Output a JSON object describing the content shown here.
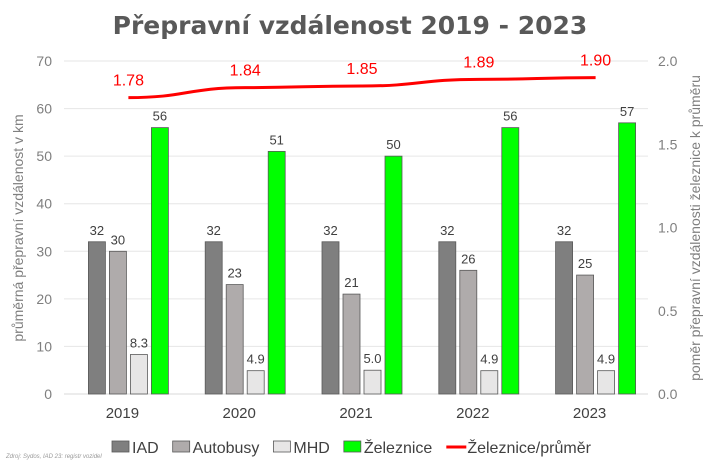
{
  "chart_data": {
    "type": "bar",
    "title": "Přepravní vzdálenost 2019 - 2023",
    "categories": [
      "2019",
      "2020",
      "2021",
      "2022",
      "2023"
    ],
    "ylabel": "průměrná přepravní vzdálenost v km",
    "y2label": "poměr přepravní vzdálenosti železnice k průměru",
    "ylim": [
      0,
      70
    ],
    "y2lim": [
      0,
      2.0
    ],
    "yticks": [
      "0",
      "10",
      "20",
      "30",
      "40",
      "50",
      "60",
      "70"
    ],
    "y2ticks": [
      "0.0",
      "0.5",
      "1.0",
      "1.5",
      "2.0"
    ],
    "grid": true,
    "legend_position": "bottom",
    "series": [
      {
        "name": "IAD",
        "type": "bar",
        "color": "#7f7f7f",
        "values": [
          32,
          32,
          32,
          32,
          32
        ],
        "labels": [
          "32",
          "32",
          "32",
          "32",
          "32"
        ]
      },
      {
        "name": "Autobusy",
        "type": "bar",
        "color": "#afabab",
        "values": [
          30,
          23,
          21,
          26,
          25
        ],
        "labels": [
          "30",
          "23",
          "21",
          "26",
          "25"
        ]
      },
      {
        "name": "MHD",
        "type": "bar",
        "color": "#e7e6e6",
        "values": [
          8.3,
          4.9,
          5.0,
          4.9,
          4.9
        ],
        "labels": [
          "8.3",
          "4.9",
          "5.0",
          "4.9",
          "4.9"
        ]
      },
      {
        "name": "Železnice",
        "type": "bar",
        "color": "#00ff00",
        "values": [
          56,
          51,
          50,
          56,
          57
        ],
        "labels": [
          "56",
          "51",
          "50",
          "56",
          "57"
        ]
      },
      {
        "name": "Železnice/průměr",
        "type": "line",
        "axis": "secondary",
        "color": "#ff0000",
        "values": [
          1.78,
          1.84,
          1.85,
          1.89,
          1.9
        ],
        "labels": [
          "1.78",
          "1.84",
          "1.85",
          "1.89",
          "1.90"
        ]
      }
    ],
    "source": "Zdroj: Sydos, IAD 23: registr vozidel"
  }
}
